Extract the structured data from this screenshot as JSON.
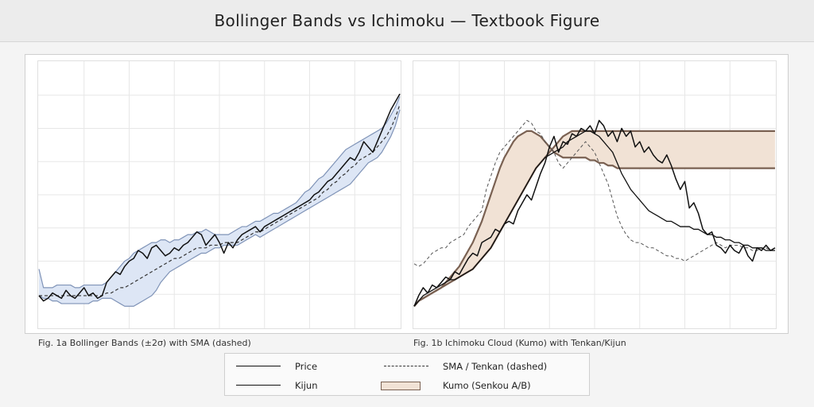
{
  "header": {
    "title": "Bollinger Bands vs Ichimoku — Textbook Figure"
  },
  "captions": {
    "left": "Fig. 1a  Bollinger Bands (±2σ) with SMA (dashed)",
    "right": "Fig. 1b  Ichimoku Cloud (Kumo) with Tenkan/Kijun"
  },
  "legend": {
    "price": "Price",
    "sma_tenkan": "SMA / Tenkan (dashed)",
    "kijun": "Kijun",
    "kumo": "Kumo (Senkou A/B)"
  },
  "colors": {
    "bollinger_fill": "#dde6f5",
    "bollinger_edge": "#7f93b7",
    "kumo_fill": "#f1e2d5",
    "kumo_edge": "#7a6152",
    "line": "#111111",
    "grid": "#e7e7e7"
  },
  "chart_data": [
    {
      "type": "line",
      "title": "Fig. 1a  Bollinger Bands (±2σ) with SMA (dashed)",
      "xlim": [
        0,
        80
      ],
      "ylim": [
        0,
        100
      ],
      "grid": true,
      "series": [
        {
          "name": "Price",
          "values": [
            12,
            10,
            11,
            13,
            12,
            11,
            14,
            12,
            11,
            13,
            15,
            12,
            13,
            11,
            12,
            17,
            19,
            21,
            20,
            23,
            25,
            26,
            29,
            28,
            26,
            30,
            31,
            29,
            27,
            28,
            30,
            29,
            31,
            32,
            34,
            36,
            35,
            31,
            33,
            35,
            32,
            28,
            32,
            30,
            33,
            35,
            36,
            37,
            38,
            36,
            38,
            39,
            40,
            41,
            42,
            43,
            44,
            45,
            46,
            47,
            48,
            50,
            51,
            53,
            55,
            56,
            58,
            60,
            62,
            64,
            63,
            66,
            70,
            68,
            66,
            70,
            74,
            78,
            82,
            85,
            88
          ]
        },
        {
          "name": "SMA",
          "values": [
            12,
            12,
            12,
            12,
            12,
            12,
            12,
            12,
            12,
            12,
            12,
            12,
            12,
            12,
            12,
            13,
            13,
            14,
            15,
            15,
            16,
            17,
            18,
            19,
            20,
            21,
            22,
            23,
            24,
            25,
            26,
            26,
            27,
            28,
            29,
            30,
            30,
            30,
            31,
            31,
            31,
            32,
            32,
            32,
            32,
            33,
            34,
            35,
            36,
            36,
            37,
            38,
            39,
            40,
            41,
            42,
            43,
            44,
            45,
            46,
            47,
            48,
            49,
            51,
            52,
            54,
            55,
            57,
            58,
            60,
            61,
            63,
            64,
            65,
            66,
            68,
            70,
            72,
            75,
            79,
            84
          ]
        },
        {
          "name": "Upper Band",
          "values": [
            22,
            15,
            15,
            15,
            16,
            16,
            16,
            16,
            15,
            15,
            16,
            16,
            16,
            16,
            16,
            17,
            19,
            21,
            23,
            25,
            26,
            28,
            29,
            30,
            31,
            32,
            32,
            33,
            33,
            32,
            33,
            33,
            34,
            35,
            35,
            36,
            36,
            37,
            36,
            35,
            35,
            35,
            35,
            36,
            37,
            38,
            38,
            39,
            40,
            40,
            41,
            42,
            43,
            43,
            44,
            45,
            46,
            47,
            49,
            51,
            52,
            54,
            56,
            57,
            59,
            61,
            63,
            65,
            67,
            68,
            69,
            70,
            71,
            72,
            73,
            74,
            75,
            77,
            80,
            83,
            87
          ]
        },
        {
          "name": "Lower Band",
          "values": [
            12,
            11,
            11,
            10,
            10,
            9,
            9,
            9,
            9,
            9,
            9,
            9,
            10,
            10,
            11,
            11,
            11,
            10,
            9,
            8,
            8,
            8,
            9,
            10,
            11,
            12,
            14,
            17,
            19,
            21,
            22,
            23,
            24,
            25,
            26,
            27,
            28,
            28,
            29,
            30,
            30,
            31,
            31,
            31,
            31,
            32,
            33,
            34,
            35,
            34,
            35,
            36,
            37,
            38,
            39,
            40,
            41,
            42,
            43,
            44,
            45,
            46,
            47,
            48,
            49,
            50,
            51,
            52,
            53,
            54,
            56,
            58,
            60,
            62,
            63,
            64,
            66,
            69,
            72,
            76,
            82
          ]
        }
      ]
    },
    {
      "type": "line",
      "title": "Fig. 1b  Ichimoku Cloud (Kumo) with Tenkan/Kijun",
      "xlim": [
        0,
        80
      ],
      "ylim": [
        0,
        100
      ],
      "grid": true,
      "series": [
        {
          "name": "Price",
          "values": [
            8,
            12,
            15,
            13,
            16,
            15,
            17,
            19,
            18,
            21,
            20,
            23,
            26,
            28,
            27,
            32,
            33,
            34,
            37,
            36,
            39,
            40,
            39,
            44,
            47,
            50,
            48,
            53,
            58,
            62,
            68,
            72,
            66,
            70,
            69,
            73,
            72,
            75,
            74,
            76,
            73,
            78,
            76,
            72,
            74,
            70,
            75,
            72,
            74,
            68,
            70,
            66,
            68,
            65,
            63,
            62,
            65,
            61,
            56,
            52,
            55,
            45,
            47,
            43,
            37,
            35,
            36,
            31,
            30,
            28,
            31,
            29,
            28,
            31,
            27,
            25,
            30,
            29,
            31,
            29,
            30
          ]
        },
        {
          "name": "Tenkan (dashed)",
          "values": [
            24,
            23,
            24,
            26,
            28,
            29,
            30,
            30,
            32,
            33,
            34,
            35,
            38,
            40,
            42,
            44,
            52,
            57,
            62,
            66,
            68,
            70,
            72,
            74,
            76,
            78,
            77,
            74,
            73,
            70,
            68,
            66,
            62,
            60,
            62,
            64,
            66,
            68,
            70,
            68,
            66,
            62,
            58,
            54,
            48,
            42,
            38,
            35,
            33,
            32,
            32,
            31,
            30,
            30,
            29,
            28,
            27,
            27,
            26,
            26,
            25,
            26,
            27,
            28,
            29,
            30,
            31,
            32,
            31,
            30,
            31,
            31,
            31,
            30,
            30,
            29,
            29,
            30,
            30,
            29,
            30
          ]
        },
        {
          "name": "Kijun",
          "values": [
            8,
            10,
            12,
            13,
            14,
            15,
            16,
            17,
            18,
            18,
            19,
            20,
            21,
            22,
            24,
            26,
            28,
            30,
            33,
            36,
            39,
            42,
            45,
            48,
            51,
            54,
            57,
            60,
            62,
            64,
            65,
            66,
            67,
            68,
            70,
            71,
            72,
            73,
            74,
            74,
            73,
            72,
            70,
            68,
            66,
            62,
            58,
            55,
            52,
            50,
            48,
            46,
            44,
            43,
            42,
            41,
            40,
            40,
            39,
            38,
            38,
            38,
            37,
            37,
            36,
            35,
            35,
            34,
            34,
            33,
            33,
            32,
            32,
            31,
            31,
            30,
            30,
            30,
            29,
            29,
            29
          ]
        },
        {
          "name": "Senkou A",
          "values": [
            8,
            10,
            11,
            12,
            13,
            14,
            15,
            17,
            19,
            21,
            23,
            26,
            29,
            32,
            36,
            40,
            45,
            50,
            55,
            60,
            64,
            67,
            70,
            72,
            73,
            74,
            74,
            73,
            72,
            70,
            68,
            66,
            65,
            64,
            64,
            64,
            64,
            64,
            64,
            63,
            63,
            62,
            62,
            61,
            61,
            60,
            60,
            60,
            60,
            60,
            60,
            60,
            60,
            60,
            60,
            60,
            60,
            60,
            60,
            60,
            60,
            60,
            60,
            60,
            60,
            60,
            60,
            60,
            60,
            60,
            60,
            60,
            60,
            60,
            60,
            60,
            60,
            60,
            60,
            60,
            60
          ]
        },
        {
          "name": "Senkou B",
          "values": [
            8,
            10,
            11,
            12,
            13,
            14,
            15,
            16,
            17,
            18,
            19,
            20,
            21,
            22,
            24,
            26,
            28,
            30,
            33,
            36,
            39,
            42,
            45,
            48,
            51,
            54,
            57,
            60,
            62,
            64,
            66,
            68,
            70,
            72,
            73,
            74,
            74,
            74,
            74,
            74,
            74,
            74,
            74,
            74,
            74,
            74,
            74,
            74,
            74,
            74,
            74,
            74,
            74,
            74,
            74,
            74,
            74,
            74,
            74,
            74,
            74,
            74,
            74,
            74,
            74,
            74,
            74,
            74,
            74,
            74,
            74,
            74,
            74,
            74,
            74,
            74,
            74,
            74,
            74,
            74,
            74
          ]
        }
      ]
    }
  ]
}
